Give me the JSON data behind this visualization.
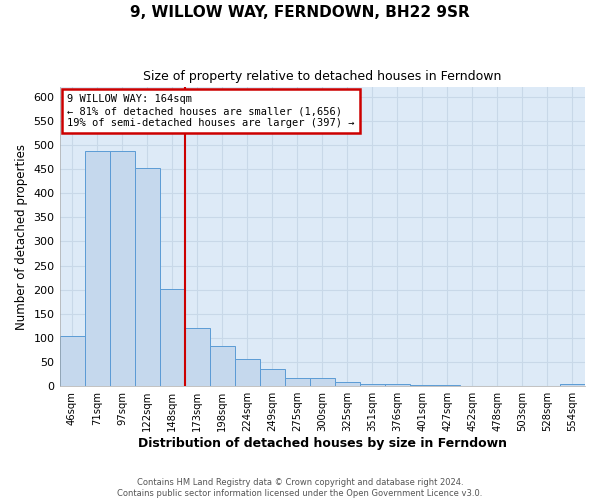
{
  "title": "9, WILLOW WAY, FERNDOWN, BH22 9SR",
  "subtitle": "Size of property relative to detached houses in Ferndown",
  "xlabel": "Distribution of detached houses by size in Ferndown",
  "ylabel": "Number of detached properties",
  "footer_line1": "Contains HM Land Registry data © Crown copyright and database right 2024.",
  "footer_line2": "Contains public sector information licensed under the Open Government Licence v3.0.",
  "bar_labels": [
    "46sqm",
    "71sqm",
    "97sqm",
    "122sqm",
    "148sqm",
    "173sqm",
    "198sqm",
    "224sqm",
    "249sqm",
    "275sqm",
    "300sqm",
    "325sqm",
    "351sqm",
    "376sqm",
    "401sqm",
    "427sqm",
    "452sqm",
    "478sqm",
    "503sqm",
    "528sqm",
    "554sqm"
  ],
  "bar_values": [
    105,
    488,
    488,
    452,
    202,
    120,
    83,
    57,
    35,
    16,
    16,
    9,
    4,
    4,
    2,
    2,
    1,
    0,
    0,
    0,
    5
  ],
  "bar_color": "#c5d8ed",
  "bar_edge_color": "#5b9bd5",
  "ylim": [
    0,
    620
  ],
  "yticks": [
    0,
    50,
    100,
    150,
    200,
    250,
    300,
    350,
    400,
    450,
    500,
    550,
    600
  ],
  "property_line_x": 5,
  "property_sqm": 164,
  "annotation_title": "9 WILLOW WAY: 164sqm",
  "annotation_line2": "← 81% of detached houses are smaller (1,656)",
  "annotation_line3": "19% of semi-detached houses are larger (397) →",
  "annotation_box_color": "#ffffff",
  "annotation_box_edge": "#cc0000",
  "line_color": "#cc0000",
  "grid_color": "#c8d8e8",
  "bg_color": "#ddeaf7",
  "fig_bg_color": "#ffffff"
}
